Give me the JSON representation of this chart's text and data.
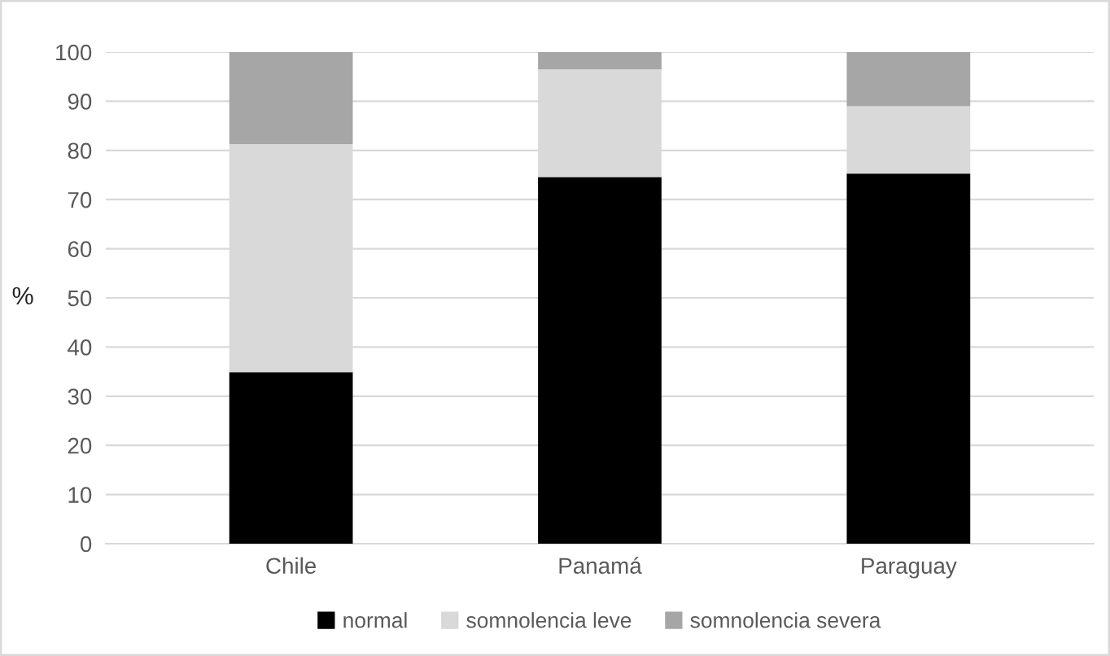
{
  "chart_data": {
    "type": "bar",
    "stacked": true,
    "ylabel": "%",
    "categories": [
      "Chile",
      "Panamá",
      "Paraguay"
    ],
    "series": [
      {
        "name": "normal",
        "color": "#000000",
        "values": [
          34.9,
          74.6,
          75.3
        ]
      },
      {
        "name": "somnolencia leve",
        "color": "#d9d9d9",
        "values": [
          46.4,
          21.9,
          13.7
        ]
      },
      {
        "name": "somnolencia severa",
        "color": "#a6a6a6",
        "values": [
          18.7,
          3.5,
          11.0
        ]
      }
    ],
    "ylim": [
      0,
      100
    ],
    "yticks": [
      0,
      10,
      20,
      30,
      40,
      50,
      60,
      70,
      80,
      90,
      100
    ],
    "grid": "y",
    "legend": "bottom"
  }
}
